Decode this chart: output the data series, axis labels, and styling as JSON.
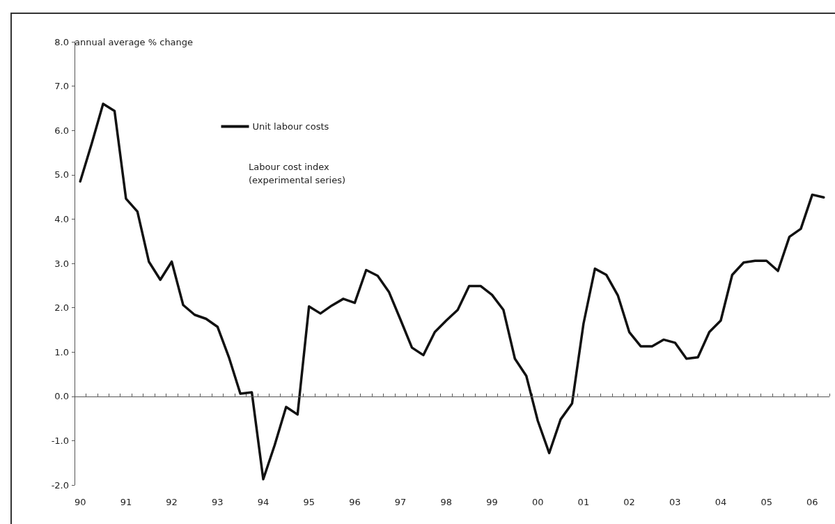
{
  "chart_data": {
    "type": "line",
    "ylabel": "annual average % change",
    "categories": [
      "90",
      null,
      null,
      null,
      "91",
      null,
      null,
      null,
      "92",
      null,
      null,
      null,
      "93",
      null,
      null,
      null,
      "94",
      null,
      null,
      null,
      "95",
      null,
      null,
      null,
      "96",
      null,
      null,
      null,
      "97",
      null,
      null,
      null,
      "98",
      null,
      null,
      null,
      "99",
      null,
      null,
      null,
      "00",
      null,
      null,
      null,
      "01",
      null,
      null,
      null,
      "02",
      null,
      null,
      null,
      "03",
      null,
      null,
      null,
      "04",
      null,
      null,
      null,
      "05",
      null,
      null,
      null,
      "06",
      null
    ],
    "series": [
      {
        "name": "Unit labour costs",
        "color": "#111111",
        "values": [
          4.85,
          5.7,
          6.6,
          6.44,
          4.46,
          4.17,
          3.04,
          2.63,
          3.04,
          2.06,
          1.84,
          1.75,
          1.57,
          0.88,
          0.06,
          0.09,
          -1.87,
          -1.1,
          -0.24,
          -0.41,
          2.03,
          1.87,
          2.05,
          2.2,
          2.11,
          2.85,
          2.72,
          2.35,
          1.73,
          1.1,
          0.93,
          1.45,
          1.71,
          1.95,
          2.49,
          2.49,
          2.29,
          1.95,
          0.85,
          0.46,
          -0.55,
          -1.28,
          -0.52,
          -0.16,
          1.64,
          2.88,
          2.74,
          2.28,
          1.45,
          1.13,
          1.13,
          1.28,
          1.21,
          0.85,
          0.88,
          1.45,
          1.71,
          2.74,
          3.02,
          3.06,
          3.06,
          2.83,
          3.6,
          3.78,
          4.55,
          4.49
        ]
      }
    ],
    "ylim": [
      -2,
      8
    ],
    "yticks": [
      {
        "value": -2,
        "label": "-2.0"
      },
      {
        "value": -1,
        "label": "-1.0"
      },
      {
        "value": 0,
        "label": "0.0"
      },
      {
        "value": 1,
        "label": "1.0"
      },
      {
        "value": 2,
        "label": "2.0"
      },
      {
        "value": 3,
        "label": "3.0"
      },
      {
        "value": 4,
        "label": "4.0"
      },
      {
        "value": 5,
        "label": "5.0"
      },
      {
        "value": 6,
        "label": "6.0"
      },
      {
        "value": 7,
        "label": "7.0"
      },
      {
        "value": 8,
        "label": "8.0"
      }
    ],
    "annotations": [
      "Labour cost index (experimental series)"
    ],
    "ref_lines": [
      {
        "axis": "y",
        "value": 0,
        "color": "#555555"
      }
    ],
    "legend": "top left",
    "grid": false,
    "marker": "none",
    "line_style": "solid"
  }
}
